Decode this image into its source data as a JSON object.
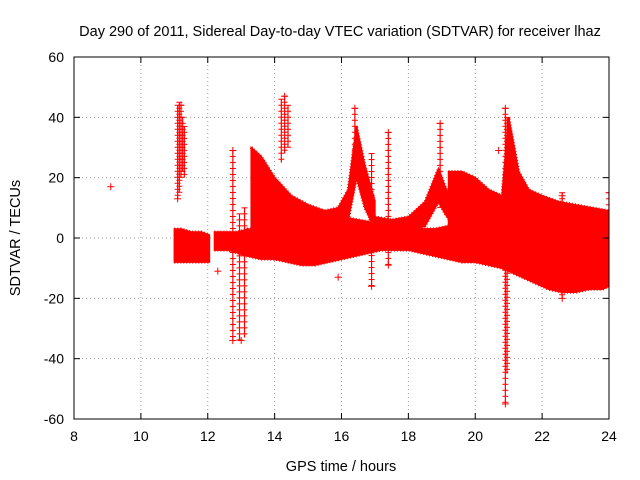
{
  "chart_data": {
    "type": "scatter",
    "title": "Day 290 of 2011, Sidereal Day-to-day VTEC variation (SDTVAR) for receiver lhaz",
    "xlabel": "GPS time / hours",
    "ylabel": "SDTVAR / TECUs",
    "xlim": [
      8,
      24
    ],
    "ylim": [
      -60,
      60
    ],
    "xticks": [
      "8",
      "10",
      "12",
      "14",
      "16",
      "18",
      "20",
      "22",
      "24"
    ],
    "yticks": [
      "-60",
      "-40",
      "-20",
      "0",
      "20",
      "40",
      "60"
    ],
    "grid": true,
    "marker": "+",
    "color": "#ff0000",
    "bands": [
      {
        "x": [
          11.0,
          11.2,
          11.5,
          11.8,
          12.05
        ],
        "lo": [
          -8,
          -8,
          -8,
          -8,
          -8
        ],
        "hi": [
          3,
          3,
          2,
          2,
          1
        ]
      },
      {
        "x": [
          12.2,
          12.6,
          12.9,
          13.2,
          13.6,
          14.0,
          14.4,
          14.8,
          15.2,
          15.6,
          16.0,
          16.4,
          16.8,
          17.2,
          17.6,
          18.0,
          18.4,
          18.8,
          19.2,
          19.6,
          20.0,
          20.4,
          20.8,
          21.0,
          21.4,
          21.8,
          22.2,
          22.6,
          23.0,
          23.4,
          23.8,
          24.0
        ],
        "lo": [
          -4,
          -4,
          -5,
          -6,
          -7,
          -7,
          -8,
          -9,
          -9,
          -8,
          -7,
          -6,
          -5,
          -4,
          -4,
          -4,
          -5,
          -6,
          -7,
          -8,
          -8,
          -9,
          -10,
          -11,
          -13,
          -15,
          -17,
          -18,
          -18,
          -17,
          -17,
          -16
        ],
        "hi": [
          2,
          2,
          2,
          3,
          3,
          3,
          3,
          3,
          3,
          3,
          3,
          3,
          3,
          3,
          3,
          3,
          3,
          3,
          4,
          4,
          5,
          6,
          8,
          12,
          12,
          11,
          11,
          11,
          10,
          9,
          8,
          8
        ]
      },
      {
        "x": [
          13.3,
          13.6,
          14.0,
          14.5,
          15.0,
          15.5,
          16.0,
          16.5,
          17.0,
          17.5,
          18.0,
          18.5,
          19.0,
          19.5,
          20.0
        ],
        "lo": [
          1,
          0,
          -1,
          -1,
          -2,
          -2,
          -1,
          -1,
          -2,
          -2,
          -1,
          -1,
          0,
          0,
          0
        ],
        "hi": [
          30,
          27,
          20,
          14,
          11,
          9,
          7,
          6,
          5,
          4,
          3,
          3,
          3,
          3,
          3
        ]
      },
      {
        "x": [
          13.3,
          13.6,
          14.0,
          14.5,
          15.0,
          15.5,
          15.9,
          16.2,
          16.45,
          16.7,
          17.0
        ],
        "lo": [
          -3,
          -6,
          -7,
          -6,
          -3,
          -1,
          1,
          6,
          20,
          10,
          3
        ],
        "hi": [
          30,
          23,
          18,
          13,
          10,
          9,
          10,
          16,
          37,
          24,
          12
        ]
      },
      {
        "x": [
          17.0,
          17.5,
          18.0,
          18.5,
          18.9,
          19.1,
          19.4
        ],
        "lo": [
          0,
          1,
          2,
          4,
          12,
          8,
          3
        ],
        "hi": [
          7,
          6,
          7,
          12,
          23,
          17,
          10
        ]
      },
      {
        "x": [
          19.2,
          19.6,
          20.0,
          20.4,
          20.8,
          21.0,
          21.3,
          21.6,
          22.0,
          22.5,
          23.0,
          23.5,
          24.0
        ],
        "lo": [
          -6,
          -5,
          -4,
          -4,
          -4,
          -5,
          -8,
          -12,
          -14,
          -15,
          -15,
          -14,
          -14
        ],
        "hi": [
          22,
          22,
          20,
          16,
          14,
          40,
          22,
          16,
          14,
          12,
          11,
          10,
          9
        ]
      }
    ],
    "spikes": [
      {
        "x": 11.1,
        "y": [
          13,
          44
        ]
      },
      {
        "x": 11.15,
        "y": [
          15,
          45
        ]
      },
      {
        "x": 11.2,
        "y": [
          20,
          44
        ]
      },
      {
        "x": 11.25,
        "y": [
          22,
          40
        ]
      },
      {
        "x": 11.3,
        "y": [
          20,
          37
        ]
      },
      {
        "x": 12.75,
        "y": [
          -34,
          29
        ]
      },
      {
        "x": 12.95,
        "y": [
          -34,
          8
        ]
      },
      {
        "x": 13.1,
        "y": [
          -33,
          10
        ]
      },
      {
        "x": 14.2,
        "y": [
          25,
          46
        ]
      },
      {
        "x": 14.3,
        "y": [
          28,
          47
        ]
      },
      {
        "x": 14.4,
        "y": [
          30,
          44
        ]
      },
      {
        "x": 16.4,
        "y": [
          20,
          43
        ]
      },
      {
        "x": 16.9,
        "y": [
          -16,
          28
        ]
      },
      {
        "x": 17.4,
        "y": [
          -9,
          35
        ]
      },
      {
        "x": 18.95,
        "y": [
          10,
          38
        ]
      },
      {
        "x": 20.9,
        "y": [
          -55,
          43
        ]
      },
      {
        "x": 20.95,
        "y": [
          -45,
          40
        ]
      },
      {
        "x": 22.6,
        "y": [
          -20,
          15
        ]
      },
      {
        "x": 24.0,
        "y": [
          -8,
          15
        ]
      }
    ],
    "points": [
      {
        "x": 9.1,
        "y": 17
      },
      {
        "x": 11.1,
        "y": 13
      },
      {
        "x": 11.2,
        "y": 44
      },
      {
        "x": 12.75,
        "y": 29
      },
      {
        "x": 12.75,
        "y": -34
      },
      {
        "x": 13.0,
        "y": -34
      },
      {
        "x": 12.3,
        "y": -11
      },
      {
        "x": 14.3,
        "y": 47
      },
      {
        "x": 15.9,
        "y": -13
      },
      {
        "x": 16.4,
        "y": 43
      },
      {
        "x": 16.9,
        "y": -16
      },
      {
        "x": 17.4,
        "y": -9
      },
      {
        "x": 17.4,
        "y": 35
      },
      {
        "x": 18.95,
        "y": 38
      },
      {
        "x": 20.7,
        "y": 29
      },
      {
        "x": 20.9,
        "y": -55
      },
      {
        "x": 20.9,
        "y": 43
      },
      {
        "x": 22.6,
        "y": 14
      },
      {
        "x": 22.6,
        "y": -20
      },
      {
        "x": 24.0,
        "y": 15
      }
    ]
  }
}
